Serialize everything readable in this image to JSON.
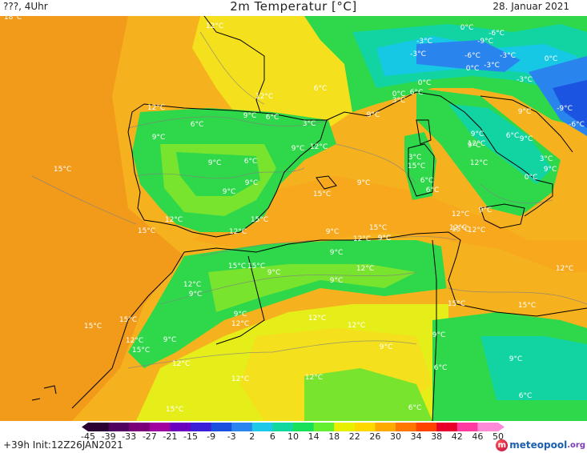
{
  "header": {
    "left": "???, 4Uhr",
    "title": "2m Temperatur [°C]",
    "date": "28. Januar 2021"
  },
  "footer": {
    "run_info": "+39h  Init:12Z26JAN2021",
    "logo_text": "meteopool",
    "logo_suffix": ".org"
  },
  "legend": {
    "ticks": [
      "-45",
      "-39",
      "-33",
      "-27",
      "-21",
      "-15",
      "-9",
      "-3",
      "2",
      "6",
      "10",
      "14",
      "18",
      "22",
      "26",
      "30",
      "34",
      "38",
      "42",
      "46",
      "50"
    ],
    "colors": [
      "#2b0033",
      "#50005e",
      "#7a007a",
      "#a000a0",
      "#6a00c0",
      "#3a1ed8",
      "#1a4fe0",
      "#2a85f0",
      "#1ec8e8",
      "#12d8a0",
      "#19e05a",
      "#64f030",
      "#e8f000",
      "#ffd800",
      "#ffaa00",
      "#ff7700",
      "#ff4400",
      "#e8002a",
      "#ff3aa0",
      "#ff8ad8"
    ]
  },
  "map_colors": {
    "sea_warm": "#f29a1a",
    "sea_mild": "#f6b21e",
    "warm_land": "#fbc51f",
    "mild_land": "#f4e01c",
    "cool_land": "#e6ee1a",
    "cool_green": "#78e42e",
    "green": "#2ed84a",
    "teal": "#12d4a2",
    "cyan": "#17c8e4",
    "blue": "#2a84ee",
    "deep_blue": "#1a54e0",
    "coast": "#000000",
    "isoline": "#808080"
  },
  "temperature_labels": [
    {
      "text": "12°C"
    },
    {
      "text": "6°C"
    },
    {
      "text": "12°C"
    },
    {
      "text": "0°C"
    },
    {
      "text": "-6°C"
    },
    {
      "text": "-3°C"
    },
    {
      "text": "-9°C"
    },
    {
      "text": "-3°C"
    },
    {
      "text": "0°C"
    },
    {
      "text": "-6°C"
    },
    {
      "text": "-3°C"
    },
    {
      "text": "0°C"
    },
    {
      "text": "-3°C"
    },
    {
      "text": "-3°C"
    },
    {
      "text": "-9°C"
    },
    {
      "text": "-6°C"
    },
    {
      "text": "0°C"
    },
    {
      "text": "6°C"
    },
    {
      "text": "0°C"
    },
    {
      "text": "3°C"
    },
    {
      "text": "9°C"
    },
    {
      "text": "12°C"
    },
    {
      "text": "9°C"
    },
    {
      "text": "6°C"
    },
    {
      "text": "3°C"
    },
    {
      "text": "9°C"
    },
    {
      "text": "6°C"
    },
    {
      "text": "9°C"
    },
    {
      "text": "9°C"
    },
    {
      "text": "12°C"
    },
    {
      "text": "15°C"
    },
    {
      "text": "6°C"
    },
    {
      "text": "9°C"
    },
    {
      "text": "9°C"
    },
    {
      "text": "6°C"
    },
    {
      "text": "9°C"
    },
    {
      "text": "12°C"
    },
    {
      "text": "3°C"
    },
    {
      "text": "9°C"
    },
    {
      "text": "0°C"
    },
    {
      "text": "3°C"
    },
    {
      "text": "9°C"
    },
    {
      "text": "12°C"
    },
    {
      "text": "15°C"
    },
    {
      "text": "12°C"
    },
    {
      "text": "6°C"
    },
    {
      "text": "9°C"
    },
    {
      "text": "9°C"
    },
    {
      "text": "15°C"
    },
    {
      "text": "15°C"
    },
    {
      "text": "9°C"
    },
    {
      "text": "15°C"
    },
    {
      "text": "12°C"
    },
    {
      "text": "12°C"
    },
    {
      "text": "15°C"
    },
    {
      "text": "15°C"
    },
    {
      "text": "12°C"
    },
    {
      "text": "15°C"
    },
    {
      "text": "12°C"
    },
    {
      "text": "9°C"
    },
    {
      "text": "15°C"
    },
    {
      "text": "15°C"
    },
    {
      "text": "12°C"
    },
    {
      "text": "9°C"
    },
    {
      "text": "9°C"
    },
    {
      "text": "9°C"
    },
    {
      "text": "12°C"
    },
    {
      "text": "12°C"
    },
    {
      "text": "12°C"
    },
    {
      "text": "9°C"
    },
    {
      "text": "12°C"
    },
    {
      "text": "15°C"
    },
    {
      "text": "12°C"
    },
    {
      "text": "9°C"
    },
    {
      "text": "9°C"
    },
    {
      "text": "15°C"
    },
    {
      "text": "9°C"
    },
    {
      "text": "18°C"
    },
    {
      "text": "15°C"
    },
    {
      "text": "12°C"
    },
    {
      "text": "6°C"
    },
    {
      "text": "15°C"
    },
    {
      "text": "12°C"
    },
    {
      "text": "12°C"
    },
    {
      "text": "12°C"
    },
    {
      "text": "9°C"
    },
    {
      "text": "9°C"
    },
    {
      "text": "9°C"
    },
    {
      "text": "6°C"
    },
    {
      "text": "6°C"
    },
    {
      "text": "15°C"
    },
    {
      "text": "12°C"
    },
    {
      "text": "9°C"
    },
    {
      "text": "9°C"
    },
    {
      "text": "6°C"
    },
    {
      "text": "6°C"
    }
  ]
}
